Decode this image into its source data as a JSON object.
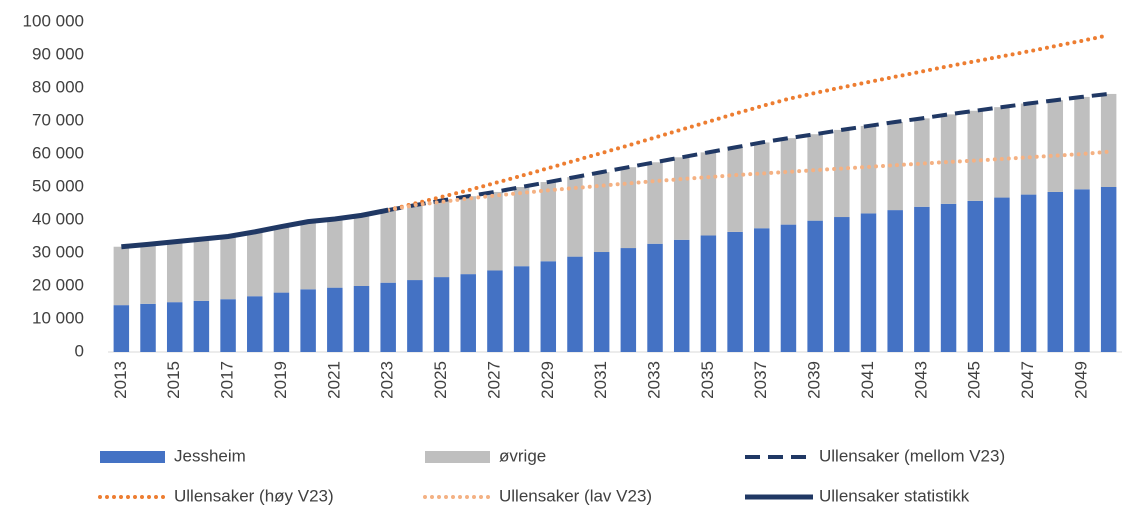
{
  "chart_data": {
    "type": "bar",
    "stacked": true,
    "categories": [
      "2013",
      null,
      "2015",
      null,
      "2017",
      null,
      "2019",
      null,
      "2021",
      null,
      "2023",
      null,
      "2025",
      null,
      "2027",
      null,
      "2029",
      null,
      "2031",
      null,
      "2033",
      null,
      "2035",
      null,
      "2037",
      null,
      "2039",
      null,
      "2041",
      null,
      "2043",
      null,
      "2045",
      null,
      "2047",
      null,
      "2049",
      null
    ],
    "ylim": [
      0,
      100000
    ],
    "yticks": [
      0,
      {
        "value": 10000,
        "label": "10 000"
      },
      {
        "value": 20000,
        "label": "20 000"
      },
      {
        "value": 30000,
        "label": "30 000"
      },
      {
        "value": 40000,
        "label": "40 000"
      },
      {
        "value": 50000,
        "label": "50 000"
      },
      {
        "value": 60000,
        "label": "60 000"
      },
      {
        "value": 70000,
        "label": "70 000"
      },
      {
        "value": 80000,
        "label": "80 000"
      },
      {
        "value": 90000,
        "label": "90 000"
      },
      {
        "value": 100000,
        "label": "100 000"
      }
    ],
    "grid": false,
    "legend": "bottom",
    "series": [
      {
        "name": "Jessheim",
        "type": "bar",
        "color": "#4472c4",
        "values": [
          14200,
          14600,
          15100,
          15500,
          16000,
          16900,
          18000,
          19000,
          19500,
          20000,
          21000,
          21800,
          22700,
          23600,
          24700,
          26000,
          27500,
          28900,
          30300,
          31500,
          32800,
          34000,
          35300,
          36400,
          37500,
          38600,
          39800,
          40900,
          42000,
          43000,
          44000,
          44900,
          45800,
          46800,
          47700,
          48500,
          49300,
          50000
        ]
      },
      {
        "name": "øvrige",
        "type": "bar",
        "color": "#bfbfbf",
        "values": [
          17700,
          18000,
          18300,
          18700,
          19000,
          19500,
          20000,
          20500,
          20800,
          21400,
          22000,
          22700,
          23200,
          23600,
          23800,
          24000,
          24000,
          24100,
          24200,
          24500,
          24700,
          25000,
          25200,
          25600,
          26000,
          26200,
          26200,
          26400,
          26500,
          26700,
          26800,
          27100,
          27300,
          27400,
          27600,
          27800,
          28000,
          28200
        ]
      },
      {
        "name": "Ullensaker (mellom V23)",
        "type": "line",
        "dash": "dashed",
        "color": "#203864",
        "values": [
          null,
          null,
          null,
          null,
          null,
          null,
          null,
          null,
          null,
          null,
          43000,
          44500,
          45900,
          47200,
          48500,
          50000,
          51500,
          53000,
          54500,
          56000,
          57500,
          59000,
          60500,
          62000,
          63500,
          64800,
          66000,
          67300,
          68500,
          69700,
          70800,
          72000,
          73100,
          74200,
          75300,
          76300,
          77300,
          78200
        ]
      },
      {
        "name": "Ullensaker (høy V23)",
        "type": "line",
        "dash": "dotted",
        "color": "#ed7d31",
        "values": [
          null,
          null,
          null,
          null,
          null,
          null,
          null,
          null,
          null,
          null,
          43000,
          45000,
          47000,
          49000,
          51200,
          53400,
          55700,
          58000,
          60300,
          62600,
          65000,
          67400,
          69800,
          72200,
          74500,
          76700,
          78500,
          80200,
          81800,
          83400,
          85000,
          86600,
          88100,
          89600,
          91100,
          92700,
          94300,
          96000
        ]
      },
      {
        "name": "Ullensaker (lav V23)",
        "type": "line",
        "dash": "dotted",
        "color": "#f4b183",
        "values": [
          null,
          null,
          null,
          null,
          null,
          null,
          null,
          null,
          null,
          null,
          43000,
          44500,
          45500,
          46500,
          47400,
          48200,
          49000,
          49700,
          50400,
          51100,
          51800,
          52400,
          53000,
          53600,
          54100,
          54600,
          55100,
          55600,
          56100,
          56600,
          57100,
          57600,
          58000,
          58500,
          59000,
          59500,
          60000,
          60700
        ]
      },
      {
        "name": "Ullensaker statistikk",
        "type": "line",
        "dash": "solid",
        "color": "#203864",
        "values": [
          31900,
          32600,
          33400,
          34200,
          35000,
          36400,
          38000,
          39500,
          40300,
          41400,
          43000,
          null,
          null,
          null,
          null,
          null,
          null,
          null,
          null,
          null,
          null,
          null,
          null,
          null,
          null,
          null,
          null,
          null,
          null,
          null,
          null,
          null,
          null,
          null,
          null,
          null,
          null,
          null
        ]
      }
    ]
  }
}
